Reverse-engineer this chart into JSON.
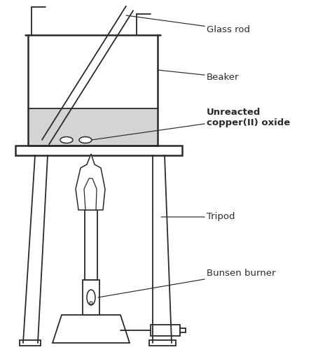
{
  "bg_color": "#ffffff",
  "line_color": "#2a2a2a",
  "fill_liquid": "#d4d4d4",
  "labels": {
    "glass_rod": "Glass rod",
    "beaker": "Beaker",
    "unreacted": "Unreacted\ncopper(II) oxide",
    "tripod": "Tripod",
    "bunsen": "Bunsen burner"
  }
}
